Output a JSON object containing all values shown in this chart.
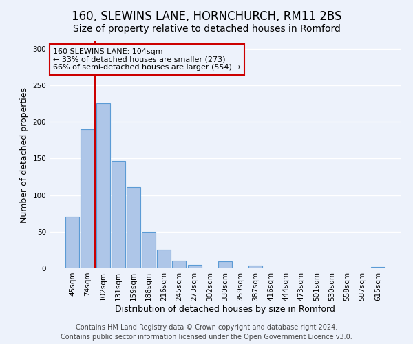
{
  "title": "160, SLEWINS LANE, HORNCHURCH, RM11 2BS",
  "subtitle": "Size of property relative to detached houses in Romford",
  "xlabel": "Distribution of detached houses by size in Romford",
  "ylabel": "Number of detached properties",
  "bar_labels": [
    "45sqm",
    "74sqm",
    "102sqm",
    "131sqm",
    "159sqm",
    "188sqm",
    "216sqm",
    "245sqm",
    "273sqm",
    "302sqm",
    "330sqm",
    "359sqm",
    "387sqm",
    "416sqm",
    "444sqm",
    "473sqm",
    "501sqm",
    "530sqm",
    "558sqm",
    "587sqm",
    "615sqm"
  ],
  "bar_values": [
    70,
    190,
    225,
    147,
    111,
    50,
    25,
    10,
    5,
    0,
    9,
    0,
    4,
    0,
    0,
    0,
    0,
    0,
    0,
    0,
    2
  ],
  "bar_color": "#aec6e8",
  "bar_edgecolor": "#5b9bd5",
  "vline_index": 2,
  "annotation_text_line1": "160 SLEWINS LANE: 104sqm",
  "annotation_text_line2": "← 33% of detached houses are smaller (273)",
  "annotation_text_line3": "66% of semi-detached houses are larger (554) →",
  "annotation_box_edgecolor": "#cc0000",
  "vline_color": "#cc0000",
  "ylim": [
    0,
    310
  ],
  "yticks": [
    0,
    50,
    100,
    150,
    200,
    250,
    300
  ],
  "footer_line1": "Contains HM Land Registry data © Crown copyright and database right 2024.",
  "footer_line2": "Contains public sector information licensed under the Open Government Licence v3.0.",
  "background_color": "#edf2fb",
  "grid_color": "#ffffff",
  "title_fontsize": 12,
  "subtitle_fontsize": 10,
  "axis_label_fontsize": 9,
  "tick_fontsize": 7.5,
  "footer_fontsize": 7,
  "annotation_fontsize": 8
}
